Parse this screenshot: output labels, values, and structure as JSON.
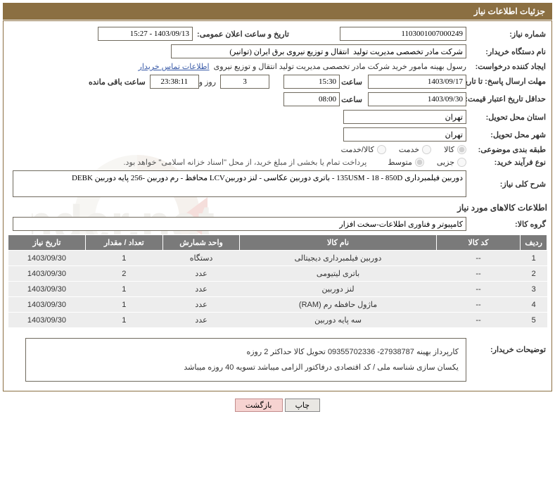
{
  "header": {
    "title": "جزئیات اطلاعات نیاز"
  },
  "fields": {
    "need_no_label": "شماره نیاز:",
    "need_no": "1103001007000249",
    "announce_label": "تاریخ و ساعت اعلان عمومی:",
    "announce": "1403/09/13 - 15:27",
    "buyer_org_label": "نام دستگاه خریدار:",
    "buyer_org": "شرکت مادر تخصصی مدیریت تولید  انتقال و توزیع نیروی برق ایران (توانیر)",
    "requester_label": "ایجاد کننده درخواست:",
    "requester": "رسول بهینه مامور خرید شرکت مادر تخصصی مدیریت تولید  انتقال و توزیع نیروی",
    "contact_link": "اطلاعات تماس خریدار",
    "deadline_label": "مهلت ارسال پاسخ: تا تاریخ:",
    "deadline_date": "1403/09/17",
    "hour_label": "ساعت",
    "deadline_time": "15:30",
    "days_remaining": "3",
    "days_label": "روز و",
    "hms_remaining": "23:38:11",
    "remaining_suffix": "ساعت باقی مانده",
    "validity_label": "حداقل تاریخ اعتبار قیمت: تا تاریخ:",
    "validity_date": "1403/09/30",
    "validity_time": "08:00",
    "province_label": "استان محل تحویل:",
    "province": "تهران",
    "city_label": "شهر محل تحویل:",
    "city": "تهران",
    "category_label": "طبقه بندی موضوعی:",
    "cat_goods": "کالا",
    "cat_service": "خدمت",
    "cat_both": "کالا/خدمت",
    "purchase_type_label": "نوع فرآیند خرید:",
    "pt_small": "جزیی",
    "pt_medium": "متوسط",
    "purchase_note": "پرداخت تمام یا بخشی از مبلغ خرید، از محل \"اسناد خزانه اسلامی\" خواهد بود.",
    "overview_label": "شرح کلی نیاز:",
    "overview": "دوربین فیلمبرداری 135USM - 18 - 850D - باتری دوربین عکاسی - لنز دوربینLCV محافظ - رم دوربین -256 پایه دوربین DEBK",
    "items_section_title": "اطلاعات کالاهای مورد نیاز",
    "group_label": "گروه کالا:",
    "group": "کامپیوتر و فناوری اطلاعات-سخت افزار",
    "buyer_desc_label": "توضیحات خریدار:",
    "buyer_desc_line1": "کارپرداز بهینه 27938787-  09355702336   تحویل کالا حداکثر 2 روزه",
    "buyer_desc_line2": "یکسان سازی شناسه ملی / کد اقتصادی درفاکتور الزامی میباشد  تسویه 40 روزه میباشد"
  },
  "table": {
    "headers": {
      "row": "ردیف",
      "code": "کد کالا",
      "name": "نام کالا",
      "unit": "واحد شمارش",
      "qty": "تعداد / مقدار",
      "date": "تاریخ نیاز"
    },
    "rows": [
      {
        "row": "1",
        "code": "--",
        "name": "دوربین فیلمبرداری دیجیتالی",
        "unit": "دستگاه",
        "qty": "1",
        "date": "1403/09/30"
      },
      {
        "row": "2",
        "code": "--",
        "name": "باتری لیتیومی",
        "unit": "عدد",
        "qty": "2",
        "date": "1403/09/30"
      },
      {
        "row": "3",
        "code": "--",
        "name": "لنز دوربین",
        "unit": "عدد",
        "qty": "1",
        "date": "1403/09/30"
      },
      {
        "row": "4",
        "code": "--",
        "name": "ماژول حافظه رم (RAM)",
        "unit": "عدد",
        "qty": "1",
        "date": "1403/09/30"
      },
      {
        "row": "5",
        "code": "--",
        "name": "سه پایه دوربین",
        "unit": "عدد",
        "qty": "1",
        "date": "1403/09/30"
      }
    ]
  },
  "buttons": {
    "print": "چاپ",
    "back": "بازگشت"
  },
  "colors": {
    "header_bg": "#8b6f42",
    "border": "#706a5e",
    "th_bg": "#7a7a7a",
    "td_bg": "#ededed",
    "link": "#3a5ba8",
    "back_btn": "#f6d3d1"
  },
  "col_widths": {
    "row": 36,
    "code": 120,
    "name": 280,
    "unit": 110,
    "qty": 110,
    "date": 110
  }
}
